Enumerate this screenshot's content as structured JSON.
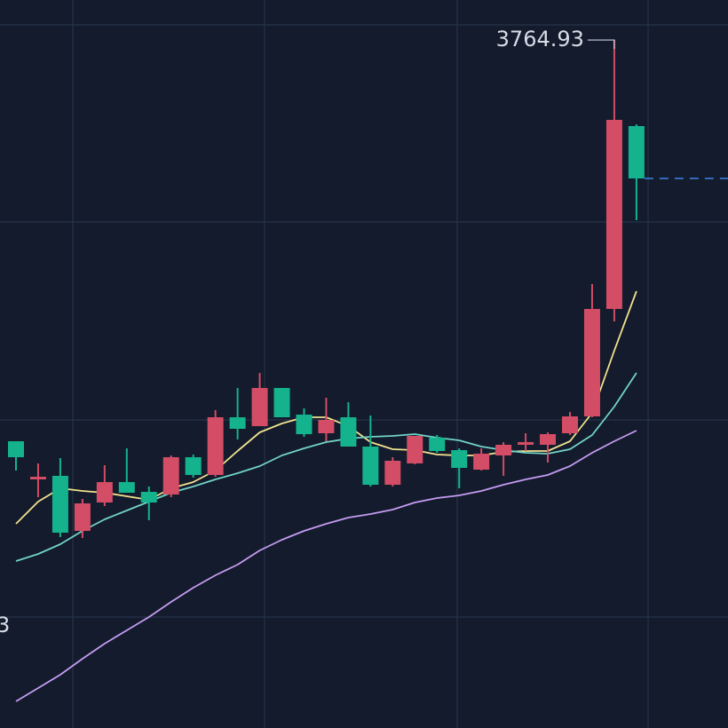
{
  "chart_data": {
    "type": "candlestick",
    "up_color": "#d24d65",
    "down_color": "#14b38d",
    "last_price_color": "#3f83e6",
    "ylim": [
      2990,
      3810
    ],
    "open": [
      3313,
      3270,
      3274,
      3212,
      3244,
      3267,
      3256,
      3253,
      3295,
      3275,
      3340,
      3330,
      3373,
      3343,
      3322,
      3340,
      3307,
      3264,
      3288,
      3317,
      3303,
      3281,
      3297,
      3309,
      3309,
      3322,
      3341,
      3462,
      3668
    ],
    "high": [
      3313,
      3288,
      3294,
      3248,
      3286,
      3305,
      3262,
      3297,
      3298,
      3348,
      3373,
      3390,
      3373,
      3350,
      3362,
      3357,
      3342,
      3295,
      3319,
      3320,
      3305,
      3305,
      3312,
      3322,
      3323,
      3346,
      3490,
      3764.93,
      3670
    ],
    "low": [
      3280,
      3250,
      3205,
      3204,
      3240,
      3255,
      3224,
      3250,
      3272,
      3273,
      3315,
      3330,
      3340,
      3318,
      3313,
      3307,
      3262,
      3262,
      3287,
      3300,
      3260,
      3280,
      3274,
      3302,
      3289,
      3320,
      3340,
      3448,
      3562
    ],
    "close": [
      3295,
      3273,
      3210,
      3243,
      3267,
      3255,
      3244,
      3295,
      3275,
      3340,
      3327,
      3373,
      3340,
      3321,
      3337,
      3307,
      3264,
      3291,
      3319,
      3302,
      3283,
      3299,
      3309,
      3312,
      3321,
      3341,
      3462,
      3675,
      3609
    ],
    "series": [
      {
        "color": "#f2e28e",
        "values": [
          3220,
          3245,
          3260,
          3257,
          3255,
          3251,
          3247,
          3260,
          3267,
          3280,
          3302,
          3323,
          3333,
          3340,
          3340,
          3330,
          3312,
          3304,
          3303,
          3298,
          3297,
          3297,
          3301,
          3302,
          3302,
          3313,
          3345,
          3415,
          3482
        ]
      },
      {
        "color": "#72d4c6",
        "values": [
          3178,
          3186,
          3197,
          3212,
          3225,
          3235,
          3245,
          3255,
          3262,
          3270,
          3277,
          3285,
          3297,
          3305,
          3312,
          3316,
          3318,
          3319,
          3321,
          3317,
          3314,
          3307,
          3303,
          3300,
          3299,
          3304,
          3320,
          3352,
          3390
        ]
      },
      {
        "color": "#c69cf2",
        "values": [
          3020,
          3035,
          3050,
          3068,
          3085,
          3100,
          3115,
          3132,
          3148,
          3162,
          3174,
          3190,
          3202,
          3212,
          3220,
          3227,
          3231,
          3236,
          3244,
          3249,
          3252,
          3257,
          3264,
          3270,
          3275,
          3285,
          3300,
          3313,
          3325
        ]
      }
    ],
    "annotation": "3"
  }
}
